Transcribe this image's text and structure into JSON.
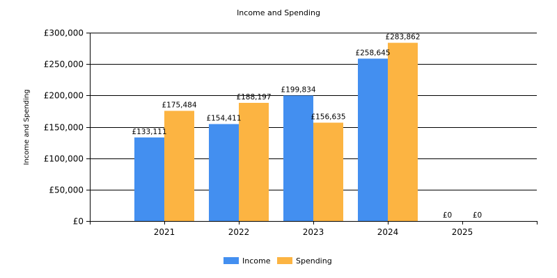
{
  "chart_data": {
    "type": "bar",
    "title": "Income and Spending",
    "xlabel": "",
    "ylabel": "Income and Spending",
    "categories": [
      "2021",
      "2022",
      "2023",
      "2024",
      "2025"
    ],
    "series": [
      {
        "name": "Income",
        "color": "#438ff0",
        "values": [
          133111,
          154411,
          199834,
          258645,
          0
        ],
        "labels": [
          "£133,111",
          "£154,411",
          "£199,834",
          "£258,645",
          "£0"
        ]
      },
      {
        "name": "Spending",
        "color": "#fcb442",
        "values": [
          175484,
          188197,
          156635,
          283862,
          0
        ],
        "labels": [
          "£175,484",
          "£188,197",
          "£156,635",
          "£283,862",
          "£0"
        ]
      }
    ],
    "ylim": [
      0,
      300000
    ],
    "y_ticks": [
      0,
      50000,
      100000,
      150000,
      200000,
      250000,
      300000
    ],
    "y_tick_labels": [
      "£0",
      "£50,000",
      "£100,000",
      "£150,000",
      "£200,000",
      "£250,000",
      "£300,000"
    ],
    "grid": true,
    "legend_position": "bottom-center"
  }
}
